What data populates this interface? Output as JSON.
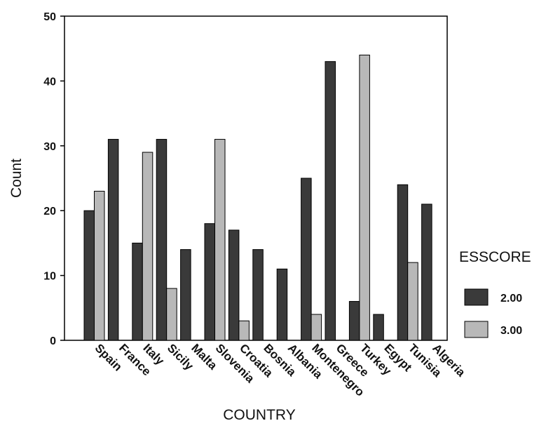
{
  "chart_data": {
    "type": "bar",
    "xlabel": "COUNTRY",
    "ylabel": "Count",
    "ylim": [
      0,
      50
    ],
    "yticks": [
      0,
      10,
      20,
      30,
      40,
      50
    ],
    "grid": false,
    "legend_placement": "right",
    "legend_title": "ESSCORE",
    "categories": [
      "Spain",
      "France",
      "Italy",
      "Sicily",
      "Malta",
      "Slovenia",
      "Croatia",
      "Bosnia",
      "Albania",
      "Montenegro",
      "Greece",
      "Turkey",
      "Egypt",
      "Tunisia",
      "Algeria"
    ],
    "series": [
      {
        "name": "2.00",
        "color": "#3a3a3a",
        "values": [
          20,
          31,
          15,
          31,
          14,
          18,
          17,
          14,
          11,
          25,
          43,
          6,
          4,
          24,
          21
        ]
      },
      {
        "name": "3.00",
        "color": "#b8b8b8",
        "values": [
          23,
          null,
          29,
          8,
          null,
          31,
          3,
          null,
          null,
          4,
          null,
          44,
          null,
          12,
          null
        ]
      }
    ]
  }
}
